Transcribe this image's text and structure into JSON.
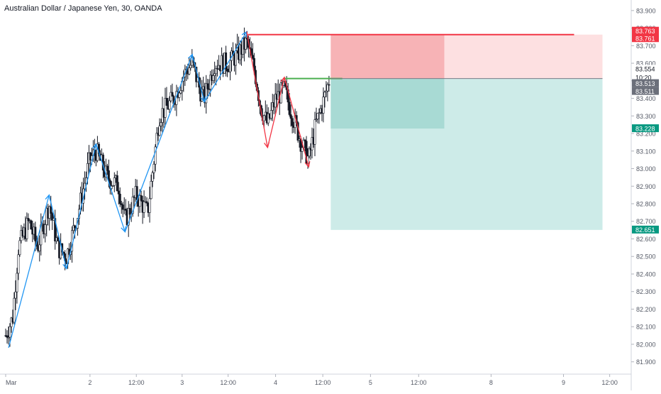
{
  "header": {
    "title": "Australian Dollar / Japanese Yen, 30, OANDA"
  },
  "colors": {
    "up_arrow": "#2196f3",
    "down_arrow": "#f23645",
    "candle": "#131722",
    "stop_zone": "#f7b3b6",
    "stop_zone_light": "#fde0e1",
    "target_zone": "#a8dad4",
    "target_zone_light": "#cdebe8",
    "stop_line": "#f23645",
    "entry_line": "#4caf50",
    "axis_text": "#555a66"
  },
  "chart_data": {
    "type": "candlestick",
    "title": "Australian Dollar / Japanese Yen, 30, OANDA",
    "y_axis": {
      "side": "right",
      "range": [
        81.83,
        83.96
      ],
      "ticks": [
        "83.900",
        "83.800",
        "83.700",
        "83.600",
        "83.500",
        "83.400",
        "83.300",
        "83.200",
        "83.100",
        "83.000",
        "82.900",
        "82.800",
        "82.700",
        "82.600",
        "82.500",
        "82.400",
        "82.300",
        "82.200",
        "82.100",
        "82.000",
        "81.900"
      ]
    },
    "x_axis": {
      "ticks": [
        {
          "label": "Mar",
          "t": 0
        },
        {
          "label": "2",
          "t": 0.1455
        },
        {
          "label": "12:00",
          "t": 0.2255
        },
        {
          "label": "3",
          "t": 0.3045
        },
        {
          "label": "12:00",
          "t": 0.3839
        },
        {
          "label": "4",
          "t": 0.4658
        },
        {
          "label": "12:00",
          "t": 0.5473
        },
        {
          "label": "5",
          "t": 0.6296
        },
        {
          "label": "12:00",
          "t": 0.7127
        },
        {
          "label": "8",
          "t": 0.8377
        },
        {
          "label": "9",
          "t": 0.9627
        },
        {
          "label": "12:00",
          "t": 1.0424
        }
      ]
    },
    "price_labels": [
      {
        "value": "83.763",
        "price": 83.763,
        "style": "red"
      },
      {
        "value": "83.761",
        "price": 83.761,
        "style": "red"
      },
      {
        "value": "83.554",
        "price": 83.554,
        "style": "plain"
      },
      {
        "value": "10:20",
        "price": 83.51,
        "style": "plain"
      },
      {
        "value": "83.513",
        "price": 83.513,
        "style": "gray"
      },
      {
        "value": "83.511",
        "price": 83.511,
        "style": "gray"
      },
      {
        "value": "83.228",
        "price": 83.228,
        "style": "green"
      },
      {
        "value": "82.651",
        "price": 82.651,
        "style": "green"
      }
    ],
    "swing_path": [
      {
        "t": 0.005,
        "p": 81.98,
        "dir": "up"
      },
      {
        "t": 0.075,
        "p": 82.85,
        "dir": "up"
      },
      {
        "t": 0.105,
        "p": 82.43,
        "dir": "down"
      },
      {
        "t": 0.156,
        "p": 83.14,
        "dir": "up"
      },
      {
        "t": 0.206,
        "p": 82.64,
        "dir": "down"
      },
      {
        "t": 0.322,
        "p": 83.65,
        "dir": "up"
      },
      {
        "t": 0.343,
        "p": 83.38,
        "dir": "down"
      },
      {
        "t": 0.416,
        "p": 83.78,
        "dir": "up"
      },
      {
        "t": 0.452,
        "p": 83.12,
        "dir": "down"
      },
      {
        "t": 0.481,
        "p": 83.52,
        "dir": "up"
      },
      {
        "t": 0.523,
        "p": 83.01,
        "dir": "down"
      }
    ],
    "stop_line": {
      "t0": 0.418,
      "t1": 0.981,
      "price": 83.763
    },
    "entry_line": {
      "t0": 0.48,
      "t1": 0.581,
      "price": 83.513
    },
    "position": {
      "entry": 83.513,
      "stop": 83.763,
      "target": 82.651,
      "inner_target": 83.228,
      "t_start": 0.561,
      "t_inner_end": 0.757,
      "t_end": 1.03
    },
    "price_path": [
      {
        "t": 0.0,
        "p": 82.05
      },
      {
        "t": 0.012,
        "p": 82.15
      },
      {
        "t": 0.022,
        "p": 82.55
      },
      {
        "t": 0.04,
        "p": 82.7
      },
      {
        "t": 0.055,
        "p": 82.55
      },
      {
        "t": 0.075,
        "p": 82.8
      },
      {
        "t": 0.09,
        "p": 82.55
      },
      {
        "t": 0.105,
        "p": 82.5
      },
      {
        "t": 0.125,
        "p": 82.75
      },
      {
        "t": 0.145,
        "p": 83.05
      },
      {
        "t": 0.156,
        "p": 83.1
      },
      {
        "t": 0.175,
        "p": 82.95
      },
      {
        "t": 0.195,
        "p": 82.9
      },
      {
        "t": 0.206,
        "p": 82.7
      },
      {
        "t": 0.225,
        "p": 82.85
      },
      {
        "t": 0.245,
        "p": 82.75
      },
      {
        "t": 0.265,
        "p": 83.3
      },
      {
        "t": 0.29,
        "p": 83.4
      },
      {
        "t": 0.31,
        "p": 83.55
      },
      {
        "t": 0.322,
        "p": 83.6
      },
      {
        "t": 0.335,
        "p": 83.45
      },
      {
        "t": 0.343,
        "p": 83.4
      },
      {
        "t": 0.36,
        "p": 83.6
      },
      {
        "t": 0.385,
        "p": 83.6
      },
      {
        "t": 0.4,
        "p": 83.65
      },
      {
        "t": 0.416,
        "p": 83.72
      },
      {
        "t": 0.43,
        "p": 83.55
      },
      {
        "t": 0.44,
        "p": 83.35
      },
      {
        "t": 0.452,
        "p": 83.25
      },
      {
        "t": 0.466,
        "p": 83.4
      },
      {
        "t": 0.481,
        "p": 83.45
      },
      {
        "t": 0.495,
        "p": 83.3
      },
      {
        "t": 0.51,
        "p": 83.15
      },
      {
        "t": 0.523,
        "p": 83.05
      },
      {
        "t": 0.535,
        "p": 83.25
      },
      {
        "t": 0.548,
        "p": 83.38
      },
      {
        "t": 0.558,
        "p": 83.5
      }
    ]
  }
}
